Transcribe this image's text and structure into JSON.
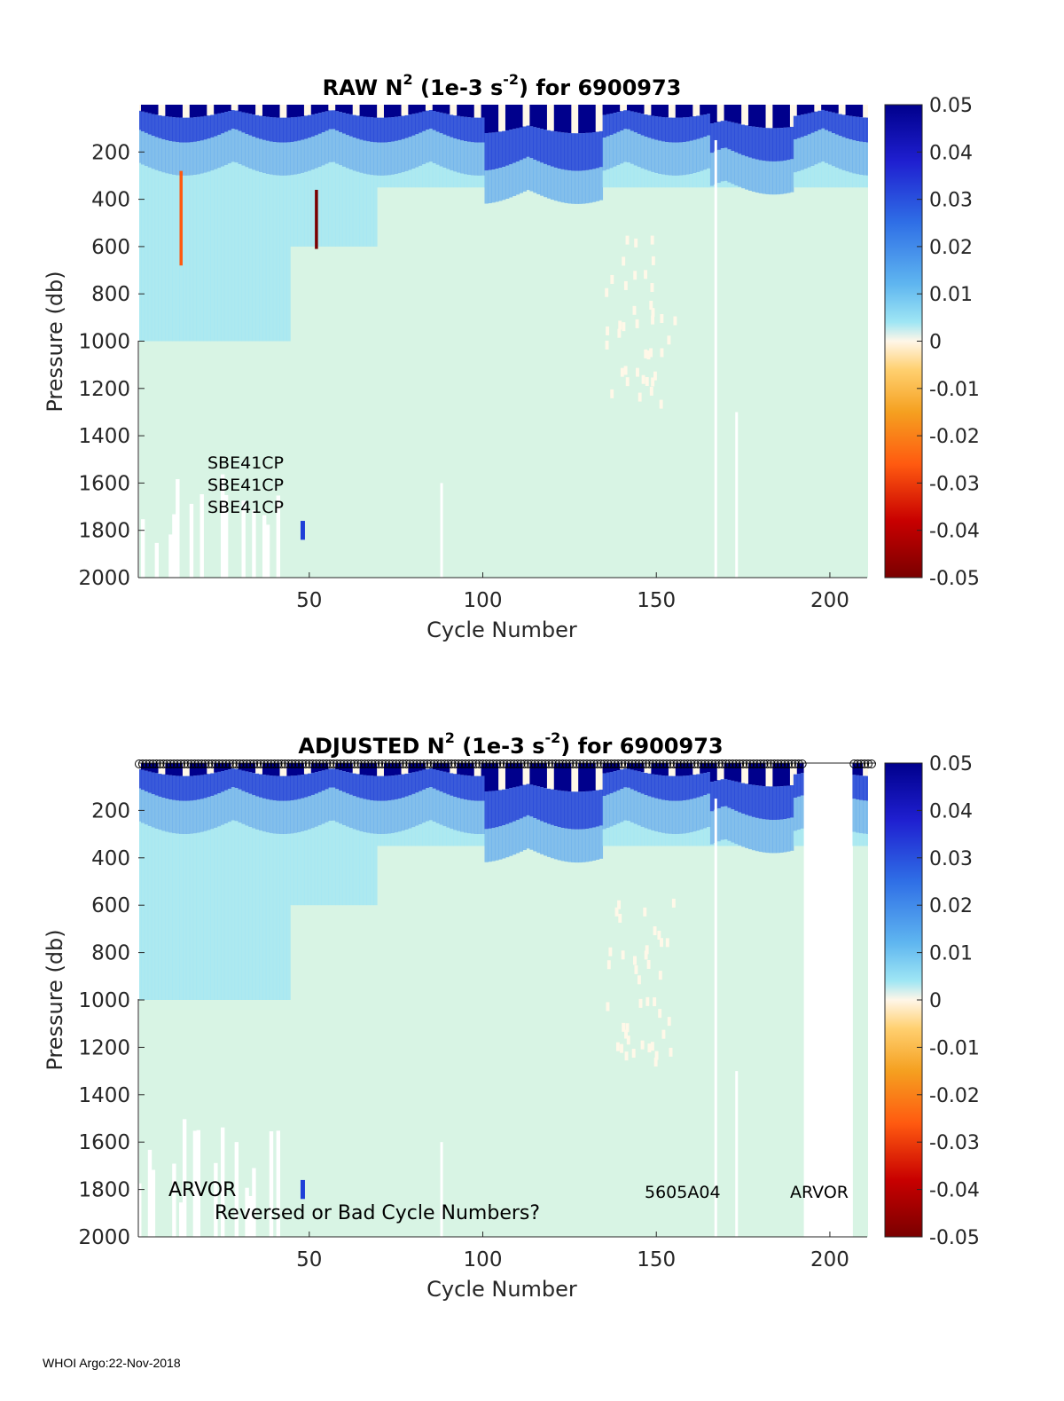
{
  "footer": "WHOI Argo:22-Nov-2018",
  "colorbar": {
    "ticks": [
      "0.05",
      "0.04",
      "0.03",
      "0.02",
      "0.01",
      "0",
      "-0.01",
      "-0.02",
      "-0.03",
      "-0.04",
      "-0.05"
    ],
    "range": [
      -0.05,
      0.05
    ],
    "colors": {
      "darkblue": "#00008c",
      "blue": "#1f3fd8",
      "mid": "#5fa8ee",
      "light": "#9fe6f4",
      "pale": "#d8f4e4",
      "zero": "#fff8e8",
      "orange1": "#ffd880",
      "orange2": "#f5a020",
      "red1": "#ff5a10",
      "red2": "#c80000",
      "darkred": "#7a0000"
    }
  },
  "chart_data": [
    {
      "type": "heatmap",
      "title_prefix": "RAW N",
      "title_sup1": "2",
      "title_mid": " (1e-3 s",
      "title_sup2": "-2",
      "title_suffix": ") for 6900973",
      "xlabel": "Cycle Number",
      "ylabel": "Pressure (db)",
      "xlim": [
        1,
        211
      ],
      "ylim": [
        2000,
        0
      ],
      "xticks": [
        "50",
        "100",
        "150",
        "200"
      ],
      "yticks": [
        "200",
        "400",
        "600",
        "800",
        "1000",
        "1200",
        "1400",
        "1600",
        "1800",
        "2000"
      ],
      "clim": [
        -0.05,
        0.05
      ],
      "annotations": [
        "SBE41CP",
        "SBE41CP",
        "SBE41CP"
      ]
    },
    {
      "type": "heatmap",
      "title_prefix": "ADJUSTED N",
      "title_sup1": "2",
      "title_mid": " (1e-3 s",
      "title_sup2": "-2",
      "title_suffix": ") for 6900973",
      "xlabel": "Cycle Number",
      "ylabel": "Pressure (db)",
      "xlim": [
        1,
        211
      ],
      "ylim": [
        2000,
        0
      ],
      "xticks": [
        "50",
        "100",
        "150",
        "200"
      ],
      "yticks": [
        "200",
        "400",
        "600",
        "800",
        "1000",
        "1200",
        "1400",
        "1600",
        "1800",
        "2000"
      ],
      "clim": [
        -0.05,
        0.05
      ],
      "annotations": [
        "ARVOR",
        "Reversed or Bad Cycle Numbers?",
        "5605A04",
        "ARVOR"
      ],
      "flag_markers": "open circles along the top for cycles 1–192 and 207–211"
    }
  ]
}
